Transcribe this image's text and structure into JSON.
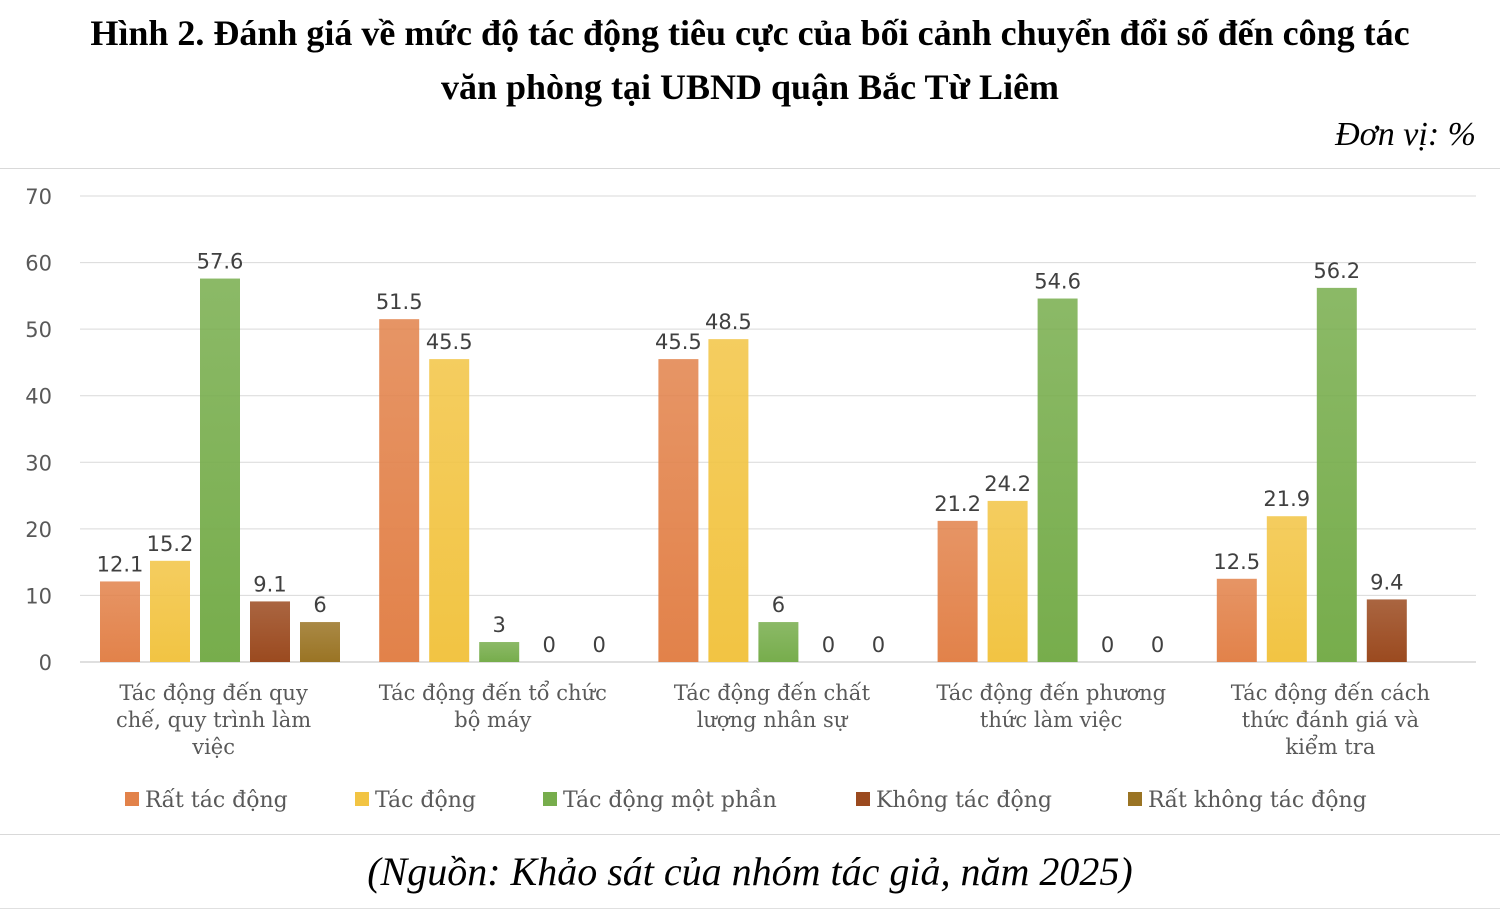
{
  "header": {
    "title_line1": "Hình 2. Đánh giá về mức độ tác động tiêu cực của bối cảnh chuyển đổi số đến công tác",
    "title_line2": "văn phòng tại UBND quận Bắc Từ Liêm",
    "unit": "Đơn vị: %"
  },
  "footer": {
    "source": "(Nguồn: Khảo sát của nhóm tác giả, năm 2025)"
  },
  "chart_data": {
    "type": "bar",
    "ylim": [
      0,
      70
    ],
    "yticks": [
      0,
      10,
      20,
      30,
      40,
      50,
      60,
      70
    ],
    "grid": true,
    "legend_position": "bottom",
    "categories": [
      [
        "Tác động đến quy",
        "chế, quy trình làm",
        "việc"
      ],
      [
        "Tác động đến tổ chức",
        "bộ máy"
      ],
      [
        "Tác động đến chất",
        "lượng nhân sự"
      ],
      [
        "Tác động đến phương",
        "thức làm việc"
      ],
      [
        "Tác động đến cách",
        "thức đánh giá và",
        "kiểm tra"
      ]
    ],
    "series": [
      {
        "name": "Rất tác động",
        "color": "#e2824a",
        "values": [
          12.1,
          51.5,
          45.5,
          21.2,
          12.5
        ]
      },
      {
        "name": "Tác động",
        "color": "#f2c443",
        "values": [
          15.2,
          45.5,
          48.5,
          24.2,
          21.9
        ]
      },
      {
        "name": "Tác động một phần",
        "color": "#77ad4c",
        "values": [
          57.6,
          3,
          6,
          54.6,
          56.2
        ]
      },
      {
        "name": "Không tác động",
        "color": "#9b4a1f",
        "values": [
          9.1,
          0,
          0,
          0,
          9.4
        ]
      },
      {
        "name": "Rất không tác động",
        "color": "#9a7424",
        "values": [
          6,
          0,
          0,
          0,
          null
        ]
      }
    ]
  }
}
